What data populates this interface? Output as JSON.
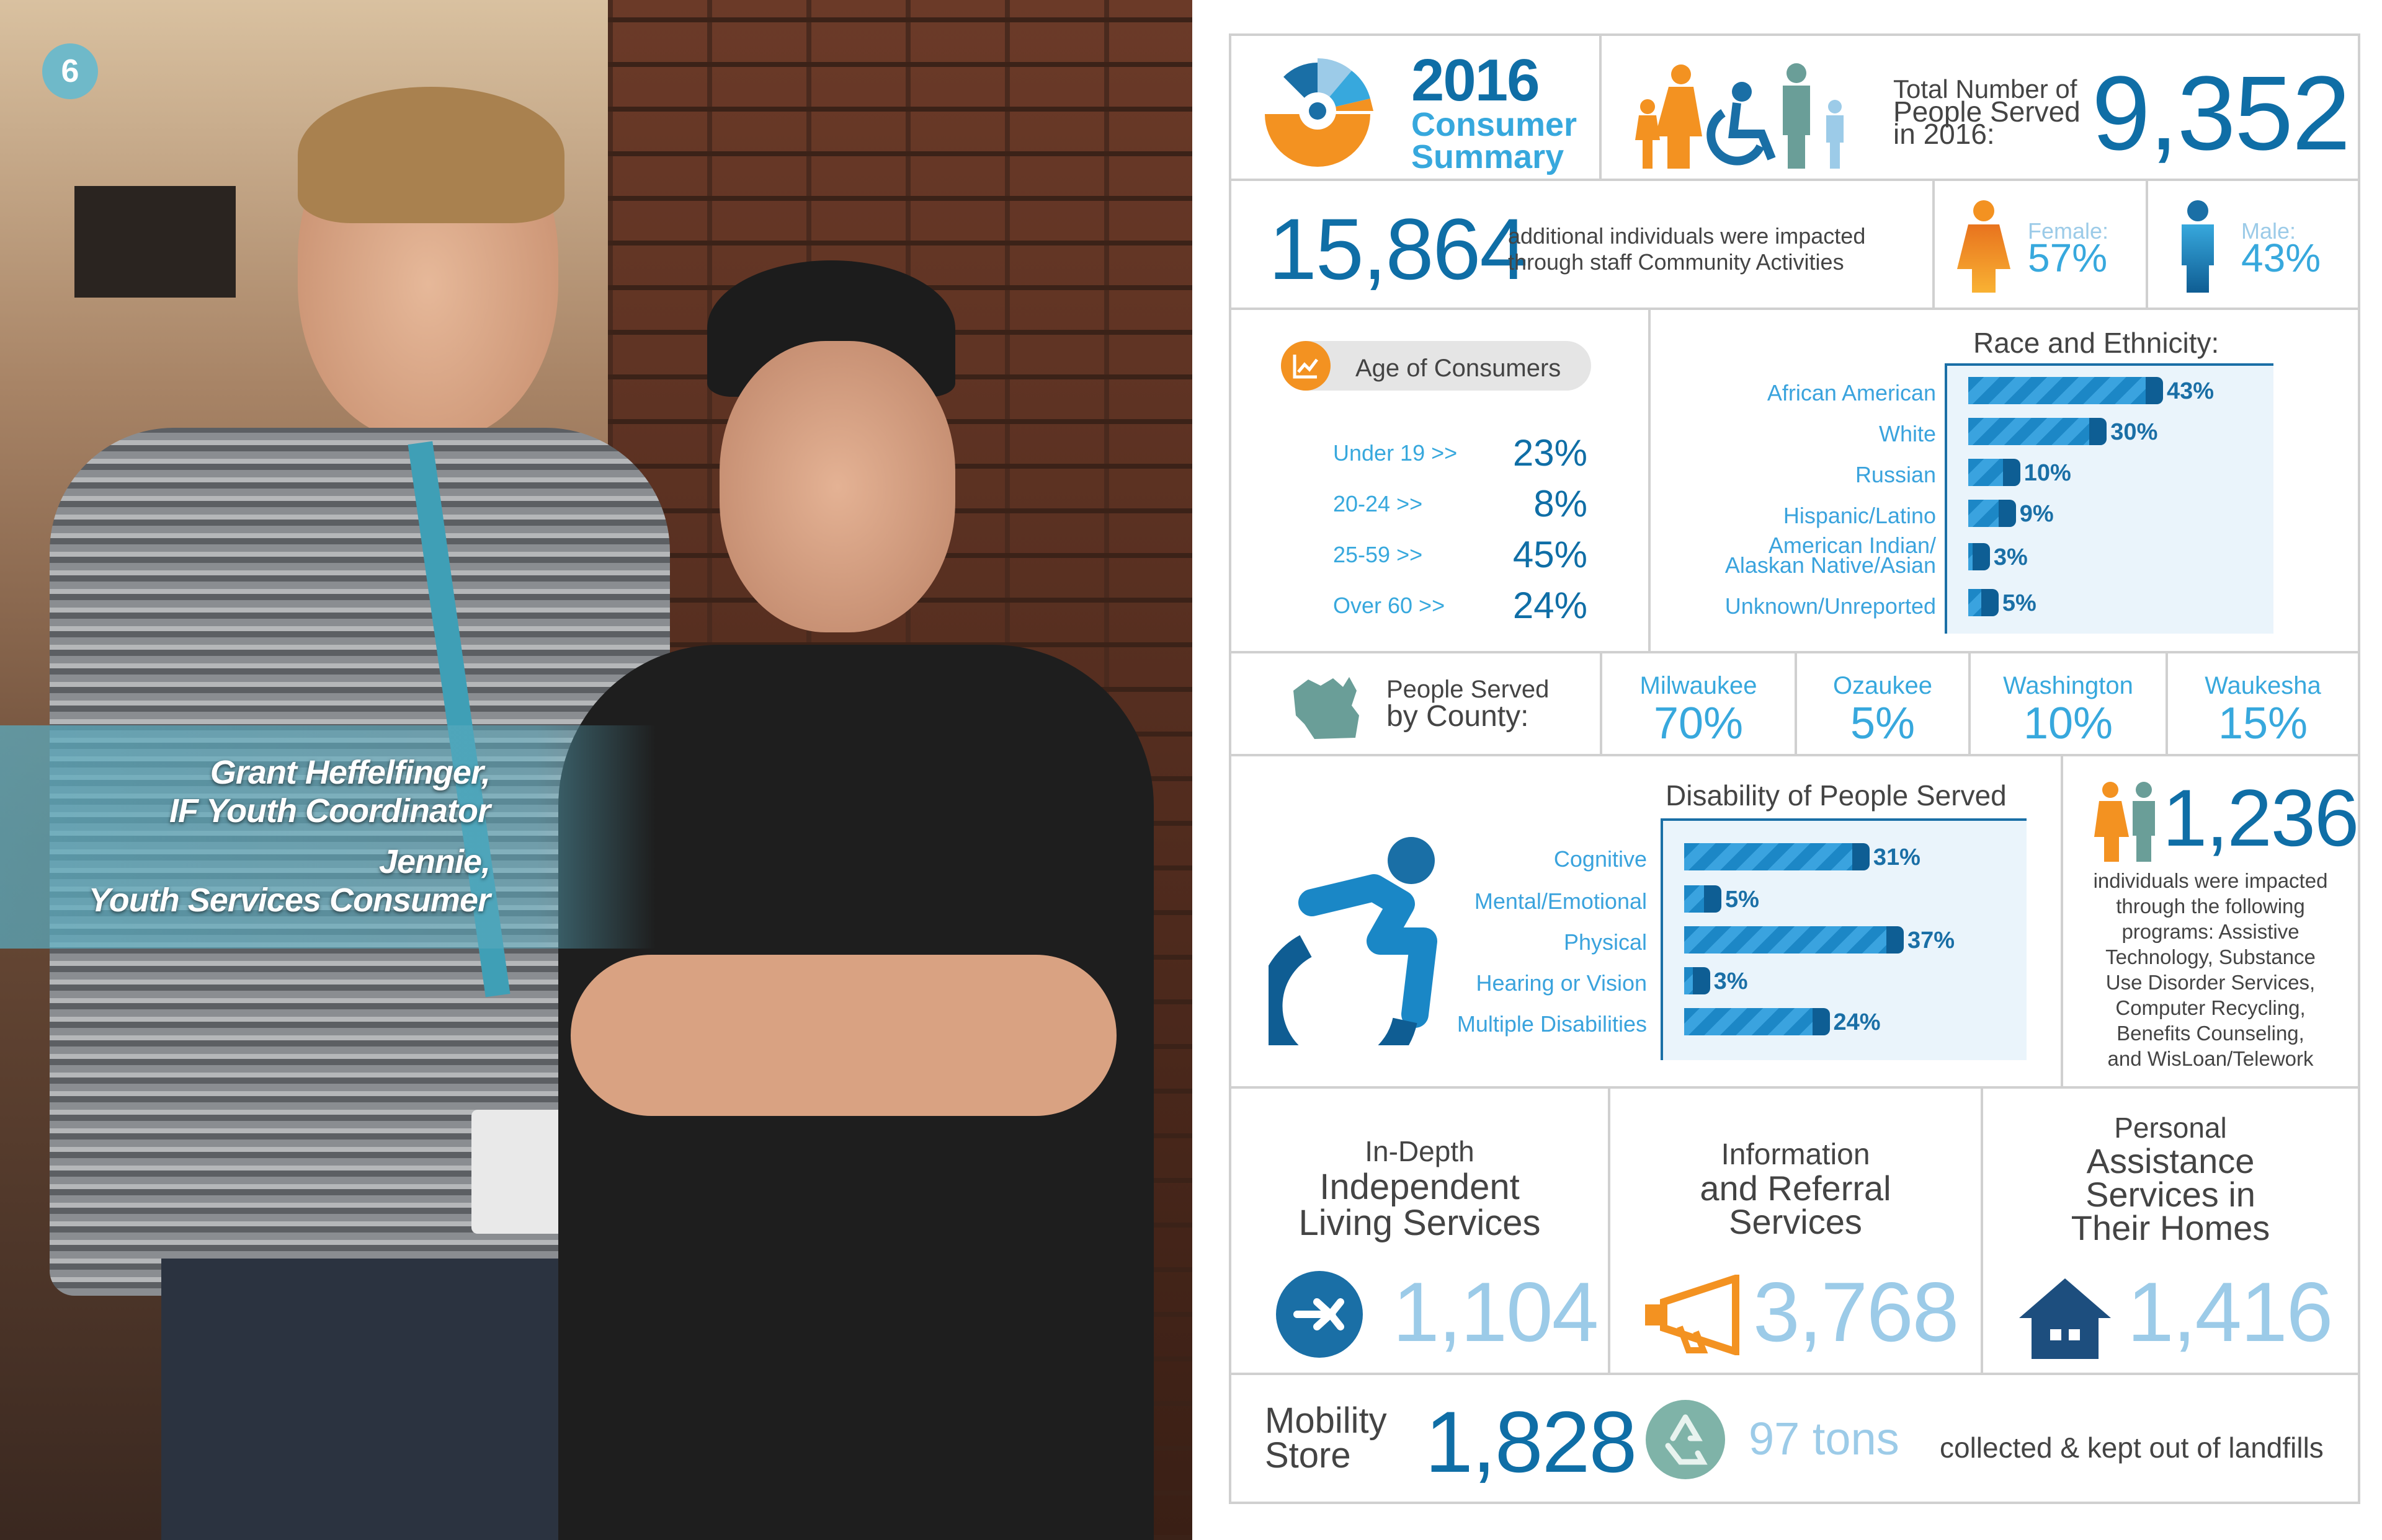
{
  "page_number": "6",
  "photo": {
    "caption_name_1": "Grant Heffelfinger,",
    "caption_role_1": "IF Youth Coordinator",
    "caption_name_2": "Jennie,",
    "caption_role_2": "Youth Services Consumer"
  },
  "header": {
    "year": "2016",
    "title_line1": "Consumer",
    "title_line2": "Summary",
    "total_label_line1": "Total Number of",
    "total_label_line2": "People Served",
    "total_label_line3": "in 2016:",
    "total_value": "9,352"
  },
  "impact": {
    "value": "15,864",
    "line1": "additional individuals were impacted",
    "line2": "through staff Community Activities",
    "female_label": "Female:",
    "female_value": "57%",
    "male_label": "Male:",
    "male_value": "43%"
  },
  "age": {
    "title": "Age of Consumers",
    "rows": [
      {
        "label": "Under 19 >>",
        "value": "23%"
      },
      {
        "label": "20-24 >>",
        "value": "8%"
      },
      {
        "label": "25-59 >>",
        "value": "45%"
      },
      {
        "label": "Over 60 >>",
        "value": "24%"
      }
    ]
  },
  "race": {
    "title": "Race and Ethnicity:",
    "rows": [
      {
        "label": "African American",
        "value": 43,
        "display": "43%"
      },
      {
        "label": "White",
        "value": 30,
        "display": "30%"
      },
      {
        "label": "Russian",
        "value": 10,
        "display": "10%"
      },
      {
        "label": "Hispanic/Latino",
        "value": 9,
        "display": "9%"
      },
      {
        "label": "American Indian/\nAlaskan Native/Asian",
        "label_line1": "American Indian/",
        "label_line2": "Alaskan Native/Asian",
        "value": 3,
        "display": "3%"
      },
      {
        "label": "Unknown/Unreported",
        "value": 5,
        "display": "5%"
      }
    ]
  },
  "county": {
    "label_line1": "People Served",
    "label_line2": "by County:",
    "items": [
      {
        "name": "Milwaukee",
        "value": "70%"
      },
      {
        "name": "Ozaukee",
        "value": "5%"
      },
      {
        "name": "Washington",
        "value": "10%"
      },
      {
        "name": "Waukesha",
        "value": "15%"
      }
    ]
  },
  "disability": {
    "title": "Disability of People Served",
    "rows": [
      {
        "label": "Cognitive",
        "value": 31,
        "display": "31%"
      },
      {
        "label": "Mental/Emotional",
        "value": 5,
        "display": "5%"
      },
      {
        "label": "Physical",
        "value": 37,
        "display": "37%"
      },
      {
        "label": "Hearing or Vision",
        "value": 3,
        "display": "3%"
      },
      {
        "label": "Multiple Disabilities",
        "value": 24,
        "display": "24%"
      }
    ]
  },
  "programs": {
    "value": "1,236",
    "lines": [
      "individuals were impacted",
      "through the following",
      "programs: Assistive",
      "Technology, Substance",
      "Use Disorder Services,",
      "Computer Recycling,",
      "Benefits Counseling,",
      "and WisLoan/Telework"
    ]
  },
  "services": [
    {
      "line1": "In-Depth",
      "line2": "Independent",
      "line3": "Living Services",
      "value": "1,104"
    },
    {
      "line1": "Information",
      "line2": "and Referral",
      "line3": "Services",
      "value": "3,768"
    },
    {
      "line1": "Personal",
      "line2": "Assistance",
      "line3": "Services in",
      "line4": "Their Homes",
      "value": "1,416"
    }
  ],
  "mobility": {
    "label_line1": "Mobility",
    "label_line2": "Store",
    "value": "1,828",
    "tons": "97 tons",
    "tons_text": "collected & kept out of landfills"
  },
  "colors": {
    "dark_blue": "#0f6ea6",
    "light_blue": "#37a8dd",
    "orange": "#f39221",
    "teal": "#6a9e98"
  },
  "chart_data": [
    {
      "type": "bar",
      "title": "Race and Ethnicity:",
      "categories": [
        "African American",
        "White",
        "Russian",
        "Hispanic/Latino",
        "American Indian/Alaskan Native/Asian",
        "Unknown/Unreported"
      ],
      "values": [
        43,
        30,
        10,
        9,
        3,
        5
      ],
      "orientation": "horizontal"
    },
    {
      "type": "bar",
      "title": "Disability of People Served",
      "categories": [
        "Cognitive",
        "Mental/Emotional",
        "Physical",
        "Hearing or Vision",
        "Multiple Disabilities"
      ],
      "values": [
        31,
        5,
        37,
        3,
        24
      ],
      "orientation": "horizontal"
    }
  ]
}
